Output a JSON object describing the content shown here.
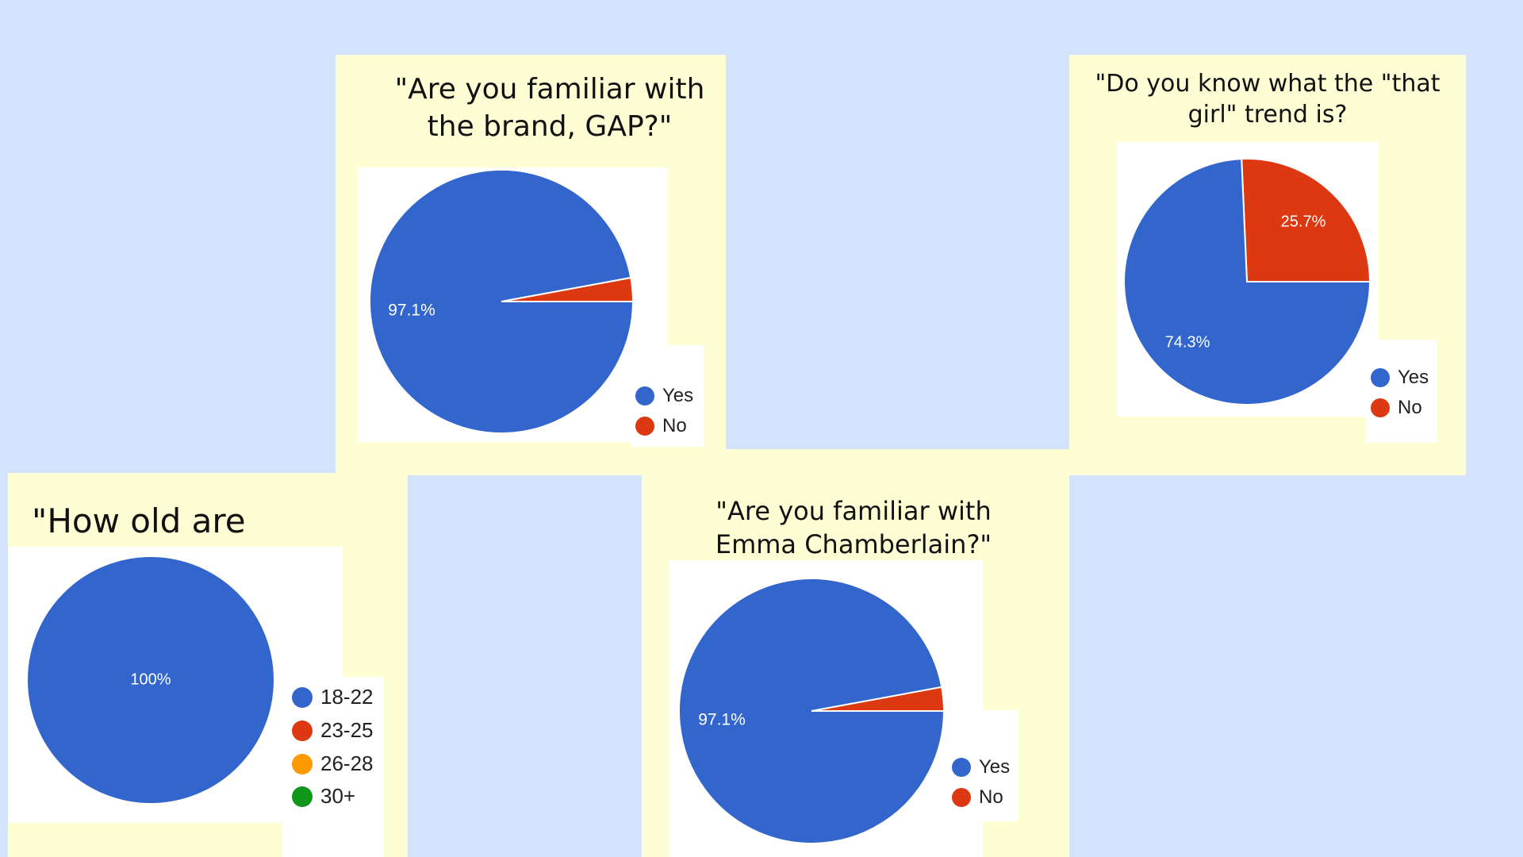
{
  "colors": {
    "background": "#d3e3fc",
    "card": "#fefed5",
    "blue": "#3366cc",
    "red": "#dc3912",
    "orange": "#ff9900",
    "green": "#109618"
  },
  "chart_data": [
    {
      "id": "gap",
      "type": "pie",
      "title": "\"Are you familiar with\nthe brand, GAP?\"",
      "categories": [
        "Yes",
        "No"
      ],
      "values": [
        97.1,
        2.9
      ],
      "data_labels": [
        "97.1%",
        ""
      ],
      "legend": "bottom-right"
    },
    {
      "id": "thatgirl",
      "type": "pie",
      "title": "\"Do you know what the \"that\ngirl\"  trend is?",
      "categories": [
        "Yes",
        "No"
      ],
      "values": [
        74.3,
        25.7
      ],
      "data_labels": [
        "74.3%",
        "25.7%"
      ],
      "legend": "bottom-right"
    },
    {
      "id": "age",
      "type": "pie",
      "title": "\"How old are you?\"",
      "categories": [
        "18-22",
        "23-25",
        "26-28",
        "30+"
      ],
      "values": [
        100,
        0,
        0,
        0
      ],
      "data_labels": [
        "100%",
        "",
        "",
        ""
      ],
      "legend": "right"
    },
    {
      "id": "emma",
      "type": "pie",
      "title": "\"Are you familiar with\nEmma Chamberlain?\"",
      "categories": [
        "Yes",
        "No"
      ],
      "values": [
        97.1,
        2.9
      ],
      "data_labels": [
        "97.1%",
        ""
      ],
      "legend": "bottom-right"
    }
  ]
}
